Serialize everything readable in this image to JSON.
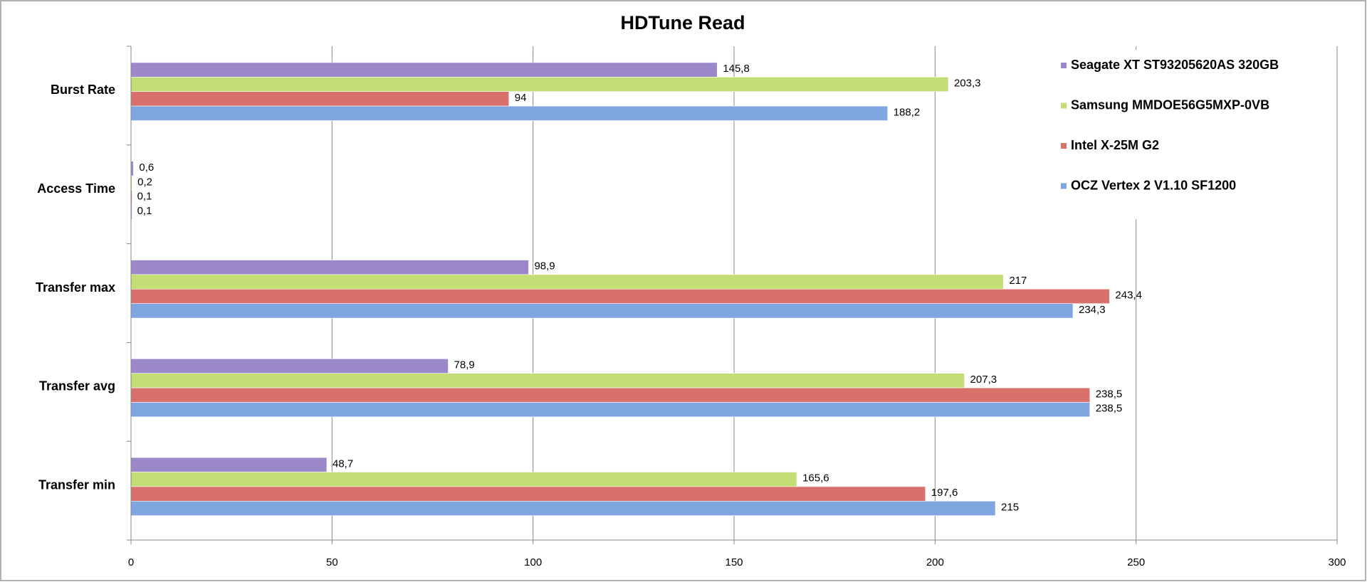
{
  "chart_data": {
    "type": "bar",
    "orientation": "horizontal",
    "title": "HDTune Read",
    "categories": [
      "Burst Rate",
      "Access Time",
      "Transfer max",
      "Transfer avg",
      "Transfer min"
    ],
    "series": [
      {
        "name": "Seagate XT ST93205620AS 320GB",
        "color": "#9b88c9",
        "values": [
          145.8,
          0.6,
          98.9,
          78.9,
          48.7
        ],
        "value_labels": [
          "145,8",
          "0,6",
          "98,9",
          "78,9",
          "48,7"
        ]
      },
      {
        "name": "Samsung MMDOE56G5MXP-0VB",
        "color": "#c2de74",
        "values": [
          203.3,
          0.2,
          217,
          207.3,
          165.6
        ],
        "value_labels": [
          "203,3",
          "0,2",
          "217",
          "207,3",
          "165,6"
        ]
      },
      {
        "name": "Intel X-25M G2",
        "color": "#d9706c",
        "values": [
          94,
          0.1,
          243.4,
          238.5,
          197.6
        ],
        "value_labels": [
          "94",
          "0,1",
          "243,4",
          "238,5",
          "197,6"
        ]
      },
      {
        "name": "OCZ Vertex 2 V1.10 SF1200",
        "color": "#7fa6e0",
        "values": [
          188.2,
          0.1,
          234.3,
          238.5,
          215
        ],
        "value_labels": [
          "188,2",
          "0,1",
          "234,3",
          "238,5",
          "215"
        ]
      }
    ],
    "xlim": [
      0,
      300
    ],
    "xticks": [
      0,
      50,
      100,
      150,
      200,
      250,
      300
    ],
    "grid": true,
    "legend": "top-right"
  }
}
